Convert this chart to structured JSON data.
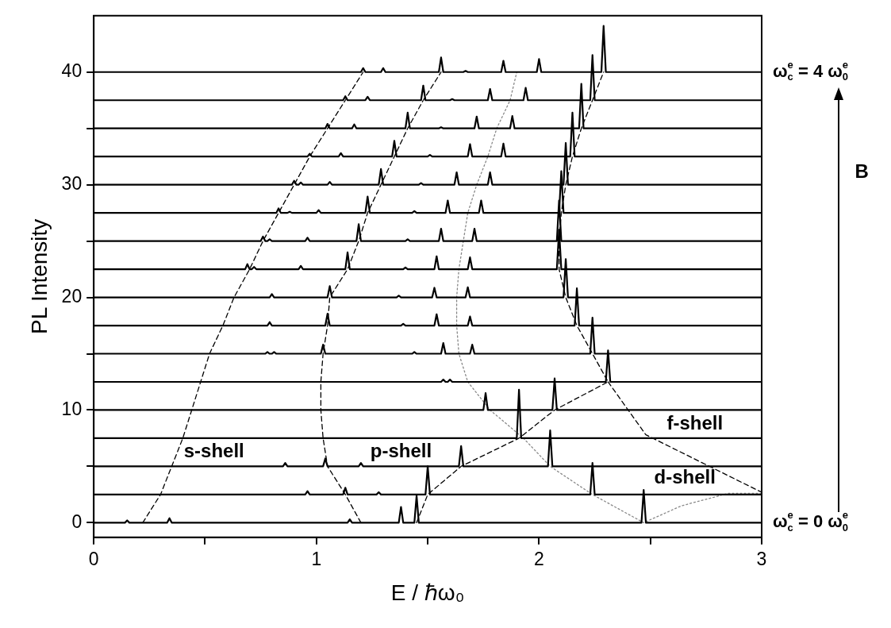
{
  "chart_data": {
    "type": "line",
    "xlabel": "E / ℏω₀",
    "ylabel": "PL Intensity",
    "xlim": [
      0,
      3
    ],
    "xticks": [
      0,
      {
        "value": 0.5,
        "label": null
      },
      1,
      {
        "value": 1.5,
        "label": null
      },
      2,
      {
        "value": 2.5,
        "label": null
      },
      3
    ],
    "ylim": [
      -1.3,
      45
    ],
    "yticks": [
      0,
      {
        "value": 5,
        "label": null
      },
      10,
      {
        "value": 15,
        "label": null
      },
      20,
      {
        "value": 25,
        "label": null
      },
      30,
      {
        "value": 35,
        "label": null
      },
      40
    ],
    "grid": false,
    "legend": false,
    "series": [
      {
        "color": "#000000",
        "line_style": "solid",
        "x": [
          0,
          0.14,
          0.15,
          0.16,
          0.33,
          0.34,
          0.35,
          1.14,
          1.15,
          1.16,
          1.37,
          1.38,
          1.39,
          1.44,
          1.45,
          1.46,
          2.46,
          2.47,
          2.48,
          3
        ],
        "values": [
          0,
          0,
          0.2,
          0,
          0,
          0.4,
          0,
          0,
          0.3,
          0,
          0,
          1.4,
          0,
          0,
          2.4,
          0,
          0,
          2.9,
          0,
          0
        ]
      },
      {
        "color": "#000000",
        "line_style": "solid",
        "x": [
          0,
          0.95,
          0.96,
          0.97,
          1.12,
          1.13,
          1.14,
          1.27,
          1.28,
          1.29,
          1.49,
          1.5,
          1.51,
          2.23,
          2.24,
          2.25,
          3
        ],
        "values": [
          2.5,
          2.5,
          2.8,
          2.5,
          2.5,
          3.1,
          2.5,
          2.5,
          2.7,
          2.5,
          2.5,
          5,
          2.5,
          2.5,
          5.3,
          2.5,
          2.5
        ]
      },
      {
        "color": "#000000",
        "line_style": "solid",
        "x": [
          0,
          0.85,
          0.86,
          0.87,
          1.03,
          1.04,
          1.05,
          1.19,
          1.2,
          1.21,
          1.64,
          1.65,
          1.66,
          2.04,
          2.05,
          2.06,
          3
        ],
        "values": [
          5,
          5,
          5.3,
          5,
          5,
          5.7,
          5,
          5,
          5.3,
          5,
          5,
          6.8,
          5,
          5,
          8.2,
          5,
          5
        ]
      },
      {
        "color": "#000000",
        "line_style": "solid",
        "x": [
          0,
          1.9,
          1.91,
          1.92,
          3
        ],
        "values": [
          7.5,
          7.5,
          11.8,
          7.5,
          7.5
        ]
      },
      {
        "color": "#000000",
        "line_style": "solid",
        "x": [
          0,
          1.75,
          1.76,
          1.77,
          2.06,
          2.07,
          2.08,
          3
        ],
        "values": [
          10,
          10,
          11.5,
          10,
          10,
          12.8,
          10,
          10
        ]
      },
      {
        "color": "#000000",
        "line_style": "solid",
        "x": [
          0,
          1.56,
          1.57,
          1.58,
          1.59,
          1.6,
          1.61,
          2.3,
          2.31,
          2.32,
          3
        ],
        "values": [
          12.5,
          12.5,
          12.7,
          12.5,
          12.5,
          12.7,
          12.5,
          12.5,
          15.3,
          12.5,
          12.5
        ]
      },
      {
        "color": "#000000",
        "line_style": "solid",
        "x": [
          0,
          0.77,
          0.78,
          0.79,
          0.8,
          0.81,
          0.82,
          1.02,
          1.03,
          1.04,
          1.43,
          1.44,
          1.45,
          1.56,
          1.57,
          1.58,
          1.69,
          1.7,
          1.71,
          2.23,
          2.24,
          2.25,
          3
        ],
        "values": [
          15,
          15,
          15.15,
          15,
          15,
          15.15,
          15,
          15,
          15.8,
          15,
          15,
          15.15,
          15,
          15,
          15.95,
          15,
          15,
          15.8,
          15,
          15,
          18.2,
          15,
          15
        ]
      },
      {
        "color": "#000000",
        "line_style": "solid",
        "x": [
          0,
          0.78,
          0.79,
          0.8,
          1.04,
          1.05,
          1.06,
          1.38,
          1.39,
          1.4,
          1.53,
          1.54,
          1.55,
          1.68,
          1.69,
          1.7,
          2.16,
          2.17,
          2.18,
          3
        ],
        "values": [
          17.5,
          17.5,
          17.8,
          17.5,
          17.5,
          18.55,
          17.5,
          17.5,
          17.65,
          17.5,
          17.5,
          18.5,
          17.5,
          17.5,
          18.3,
          17.5,
          17.5,
          20.8,
          17.5,
          17.5
        ]
      },
      {
        "color": "#000000",
        "line_style": "solid",
        "x": [
          0,
          0.79,
          0.8,
          0.81,
          1.05,
          1.06,
          1.07,
          1.36,
          1.37,
          1.38,
          1.52,
          1.53,
          1.54,
          1.67,
          1.68,
          1.69,
          2.11,
          2.12,
          2.13,
          3
        ],
        "values": [
          20,
          20,
          20.3,
          20,
          20,
          21,
          20,
          20,
          20.15,
          20,
          20,
          20.85,
          20,
          20,
          20.9,
          20,
          20,
          23.4,
          20,
          20
        ]
      },
      {
        "color": "#000000",
        "line_style": "solid",
        "x": [
          0,
          0.68,
          0.69,
          0.7,
          0.71,
          0.72,
          0.73,
          0.92,
          0.93,
          0.94,
          1.13,
          1.14,
          1.15,
          1.39,
          1.4,
          1.41,
          1.53,
          1.54,
          1.55,
          1.68,
          1.69,
          1.7,
          2.08,
          2.09,
          2.1,
          3
        ],
        "values": [
          22.5,
          22.5,
          22.95,
          22.5,
          22.5,
          22.7,
          22.5,
          22.5,
          22.8,
          22.5,
          22.5,
          24,
          22.5,
          22.5,
          22.65,
          22.5,
          22.5,
          23.65,
          22.5,
          22.5,
          23.55,
          22.5,
          22.5,
          26,
          22.5,
          22.5
        ]
      },
      {
        "color": "#000000",
        "line_style": "solid",
        "x": [
          0,
          0.75,
          0.76,
          0.77,
          0.78,
          0.79,
          0.8,
          0.95,
          0.96,
          0.97,
          1.18,
          1.19,
          1.2,
          1.4,
          1.41,
          1.42,
          1.55,
          1.56,
          1.57,
          1.7,
          1.71,
          1.72,
          2.08,
          2.09,
          2.1,
          3
        ],
        "values": [
          25,
          25,
          25.4,
          25,
          25,
          25.15,
          25,
          25,
          25.3,
          25,
          25,
          26.5,
          25,
          25,
          25.15,
          25,
          25,
          26.1,
          25,
          25,
          26.1,
          25,
          25,
          28.6,
          25,
          25
        ]
      },
      {
        "color": "#000000",
        "line_style": "solid",
        "x": [
          0,
          0.82,
          0.83,
          0.84,
          0.87,
          0.88,
          0.89,
          1,
          1.01,
          1.02,
          1.22,
          1.23,
          1.24,
          1.43,
          1.44,
          1.45,
          1.58,
          1.59,
          1.6,
          1.73,
          1.74,
          1.75,
          2.09,
          2.1,
          2.11,
          3
        ],
        "values": [
          27.5,
          27.5,
          27.9,
          27.5,
          27.5,
          27.6,
          27.5,
          27.5,
          27.75,
          27.5,
          27.5,
          28.95,
          27.5,
          27.5,
          27.65,
          27.5,
          27.5,
          28.6,
          27.5,
          27.5,
          28.6,
          27.5,
          27.5,
          31.2,
          27.5,
          27.5
        ]
      },
      {
        "color": "#000000",
        "line_style": "solid",
        "x": [
          0,
          0.89,
          0.9,
          0.91,
          0.92,
          0.93,
          0.94,
          1.05,
          1.06,
          1.07,
          1.28,
          1.29,
          1.3,
          1.46,
          1.47,
          1.48,
          1.62,
          1.63,
          1.64,
          1.77,
          1.78,
          1.79,
          2.11,
          2.12,
          2.13,
          3
        ],
        "values": [
          30,
          30,
          30.35,
          30,
          30,
          30.2,
          30,
          30,
          30.25,
          30,
          30,
          31.4,
          30,
          30,
          30.15,
          30,
          30,
          31.1,
          30,
          30,
          31.1,
          30,
          30,
          33.7,
          30,
          30
        ]
      },
      {
        "color": "#000000",
        "line_style": "solid",
        "x": [
          0,
          0.96,
          0.97,
          0.98,
          1.1,
          1.11,
          1.12,
          1.34,
          1.35,
          1.36,
          1.5,
          1.51,
          1.52,
          1.68,
          1.69,
          1.7,
          1.83,
          1.84,
          1.85,
          2.14,
          2.15,
          2.16,
          3
        ],
        "values": [
          32.5,
          32.5,
          32.75,
          32.5,
          32.5,
          32.8,
          32.5,
          32.5,
          33.9,
          32.5,
          32.5,
          32.65,
          32.5,
          32.5,
          33.6,
          32.5,
          32.5,
          33.65,
          32.5,
          32.5,
          36.4,
          32.5,
          32.5
        ]
      },
      {
        "color": "#000000",
        "line_style": "solid",
        "x": [
          0,
          1.04,
          1.05,
          1.06,
          1.16,
          1.17,
          1.18,
          1.4,
          1.41,
          1.42,
          1.55,
          1.56,
          1.57,
          1.71,
          1.72,
          1.73,
          1.87,
          1.88,
          1.89,
          2.18,
          2.19,
          2.2,
          3
        ],
        "values": [
          35,
          35,
          35.4,
          35,
          35,
          35.35,
          35,
          35,
          36.4,
          35,
          35,
          35.1,
          35,
          35,
          36.05,
          35,
          35,
          36.1,
          35,
          35,
          38.95,
          35,
          35
        ]
      },
      {
        "color": "#000000",
        "line_style": "solid",
        "x": [
          0,
          1.12,
          1.13,
          1.14,
          1.22,
          1.23,
          1.24,
          1.47,
          1.48,
          1.49,
          1.6,
          1.61,
          1.62,
          1.77,
          1.78,
          1.79,
          1.93,
          1.94,
          1.95,
          2.23,
          2.24,
          2.25,
          3
        ],
        "values": [
          37.5,
          37.5,
          37.85,
          37.5,
          37.5,
          37.8,
          37.5,
          37.5,
          38.8,
          37.5,
          37.5,
          37.6,
          37.5,
          37.5,
          38.5,
          37.5,
          37.5,
          38.6,
          37.5,
          37.5,
          41.5,
          37.5,
          37.5
        ]
      },
      {
        "color": "#000000",
        "line_style": "solid",
        "x": [
          0,
          1.2,
          1.21,
          1.22,
          1.29,
          1.3,
          1.31,
          1.55,
          1.56,
          1.57,
          1.66,
          1.67,
          1.68,
          1.83,
          1.84,
          1.85,
          1.99,
          2,
          2.01,
          2.28,
          2.29,
          2.3,
          3
        ],
        "values": [
          40,
          40,
          40.35,
          40,
          40,
          40.35,
          40,
          40,
          41.3,
          40,
          40,
          40.1,
          40,
          40,
          41,
          40,
          40,
          41.15,
          40,
          40,
          44.1,
          40,
          40
        ]
      },
      {
        "color": "#000000",
        "line_style": "dashed",
        "x": [
          0.22,
          0.3,
          0.35,
          0.4,
          0.44,
          0.48,
          0.52,
          0.58,
          0.63,
          0.7,
          0.76,
          0.83,
          0.9,
          0.97,
          1.05,
          1.13,
          1.21
        ],
        "values": [
          0,
          2.5,
          5,
          7.5,
          10,
          12.5,
          15,
          17.5,
          20,
          22.5,
          25,
          27.5,
          30,
          32.5,
          35,
          37.5,
          40
        ]
      },
      {
        "color": "#000000",
        "line_style": "dashed",
        "x": [
          1.2,
          1.13,
          1.05,
          1.03,
          1.02,
          1.02,
          1.03,
          1.05,
          1.06,
          1.14,
          1.19,
          1.23,
          1.29,
          1.35,
          1.41,
          1.48,
          1.56
        ],
        "values": [
          0,
          2.5,
          5,
          7.5,
          10,
          12.5,
          15,
          17.5,
          20,
          22.5,
          25,
          27.5,
          30,
          32.5,
          35,
          37.5,
          40
        ]
      },
      {
        "color": "#888888",
        "line_style": "dotted",
        "x": [
          3,
          2.85,
          2.64,
          2.47,
          2.24,
          2.05,
          1.93,
          1.78,
          1.68,
          1.64,
          1.63,
          1.63,
          1.64,
          1.66,
          1.68,
          1.72,
          1.77,
          1.81,
          1.87,
          1.9
        ],
        "values": [
          2.6,
          2.6,
          1.5,
          0,
          2.5,
          5,
          7.5,
          10,
          12.5,
          15,
          17.5,
          20,
          22.5,
          25,
          27.5,
          30,
          32.5,
          35,
          37.5,
          40
        ]
      },
      {
        "color": "#000000",
        "line_style": "dashed",
        "x": [
          1.45,
          1.5,
          1.65,
          1.91,
          2.07,
          2.31,
          2.24,
          2.17,
          2.12,
          2.09,
          2.09,
          2.1,
          2.12,
          2.15,
          2.19,
          2.24,
          2.29
        ],
        "values": [
          0,
          2.5,
          5,
          7.5,
          10,
          12.5,
          15,
          17.5,
          20,
          22.5,
          25,
          27.5,
          30,
          32.5,
          35,
          37.5,
          40
        ]
      },
      {
        "color": "#000000",
        "line_style": "dashed",
        "x": [
          2.31,
          2.48,
          3
        ],
        "values": [
          12.5,
          7.8,
          2.7
        ]
      }
    ],
    "annotations": [
      "s-shell",
      "p-shell",
      "d-shell",
      "f-shell",
      {
        "text": "ω$_{c}$$^{e}$ = 4 ω$_{0}$$^{e}$",
        "x": 3,
        "y": 40
      },
      {
        "text": "ω$_{c}$$^{e}$ = 0 ω$_{0}$$^{e}$",
        "x": 3,
        "y": 0
      },
      "B"
    ]
  }
}
